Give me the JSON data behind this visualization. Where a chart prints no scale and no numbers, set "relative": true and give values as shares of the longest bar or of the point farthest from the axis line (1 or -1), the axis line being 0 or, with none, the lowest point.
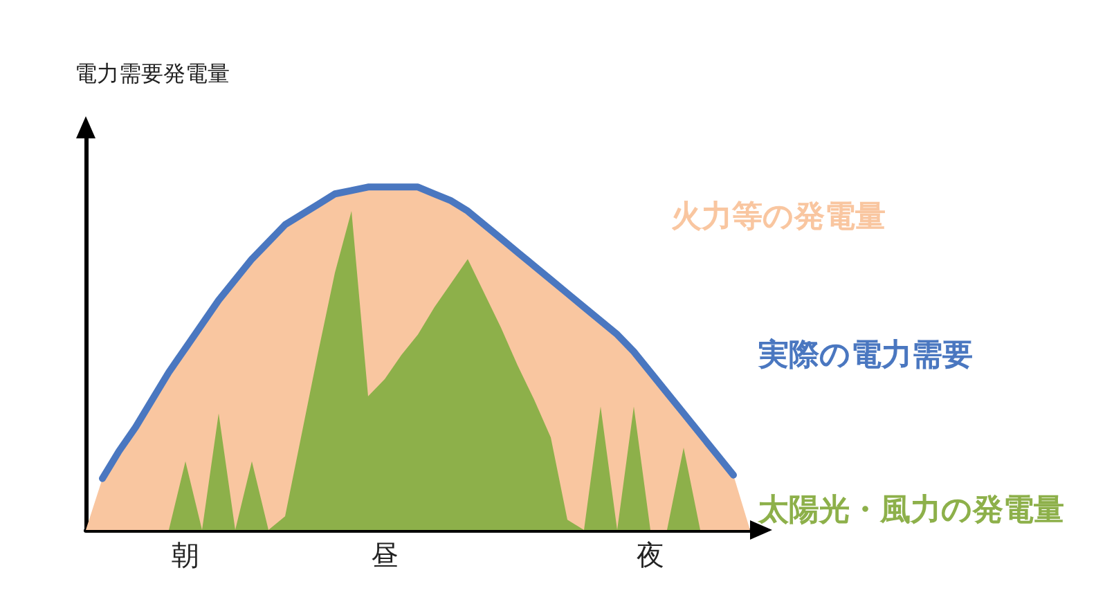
{
  "chart_data": {
    "type": "area",
    "relative": true,
    "ylabel": "電力需要発電量",
    "tick_labels": "x",
    "marker": "none",
    "categories": [
      null,
      null,
      null,
      null,
      null,
      null,
      "朝",
      null,
      null,
      null,
      null,
      null,
      null,
      null,
      null,
      null,
      null,
      null,
      "昼",
      null,
      null,
      null,
      null,
      null,
      null,
      null,
      null,
      null,
      null,
      null,
      null,
      null,
      null,
      null,
      "夜",
      null,
      null,
      null,
      null,
      null,
      null
    ],
    "series": [
      {
        "name": "火力等の発電量",
        "type": "area",
        "color": "#f9c6a0",
        "values": [
          0,
          0.15,
          0.23,
          0.3,
          0.38,
          0.46,
          0.53,
          0.6,
          0.67,
          0.73,
          0.79,
          0.84,
          0.89,
          0.92,
          0.95,
          0.98,
          0.99,
          1.0,
          1.0,
          1.0,
          1.0,
          0.98,
          0.96,
          0.93,
          0.89,
          0.85,
          0.81,
          0.77,
          0.73,
          0.69,
          0.65,
          0.61,
          0.57,
          0.52,
          0.46,
          0.4,
          0.34,
          0.28,
          0.22,
          0.16,
          0
        ]
      },
      {
        "name": "実際の電力需要",
        "type": "line",
        "color": "#4a77c0",
        "values": [
          null,
          0.15,
          0.23,
          0.3,
          0.38,
          0.46,
          0.53,
          0.6,
          0.67,
          0.73,
          0.79,
          0.84,
          0.89,
          0.92,
          0.95,
          0.98,
          0.99,
          1.0,
          1.0,
          1.0,
          1.0,
          0.98,
          0.96,
          0.93,
          0.89,
          0.85,
          0.81,
          0.77,
          0.73,
          0.69,
          0.65,
          0.61,
          0.57,
          0.52,
          0.46,
          0.4,
          0.34,
          0.28,
          0.22,
          0.16,
          null
        ]
      },
      {
        "name": "太陽光・風力の発電量",
        "type": "area",
        "color": "#8db04a",
        "values": [
          0,
          0,
          0,
          0,
          0,
          0,
          0.2,
          0,
          0.34,
          0,
          0.2,
          0,
          0.04,
          0.28,
          0.52,
          0.75,
          0.93,
          0.39,
          0.44,
          0.51,
          0.57,
          0.65,
          0.72,
          0.79,
          0.69,
          0.59,
          0.48,
          0.38,
          0.27,
          0.03,
          0,
          0.36,
          0,
          0.36,
          0,
          0,
          0.24,
          0,
          0,
          0,
          0
        ]
      }
    ]
  }
}
